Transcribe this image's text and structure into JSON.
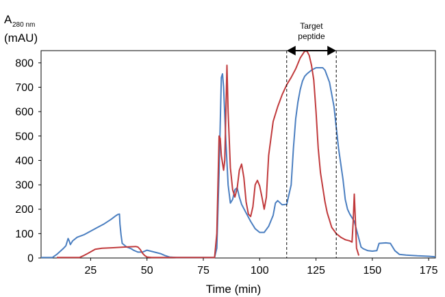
{
  "chart_data": {
    "type": "line",
    "title": "",
    "ylabel_main": "A",
    "ylabel_sub": "280 nm",
    "ylabel_unit": "(mAU)",
    "xlabel": "Time (min)",
    "xlim": [
      3,
      178
    ],
    "ylim": [
      0,
      850
    ],
    "xticks": [
      25,
      50,
      75,
      100,
      125,
      150,
      175
    ],
    "yticks": [
      0,
      100,
      200,
      300,
      400,
      500,
      600,
      700,
      800
    ],
    "grid": false,
    "legend": "none",
    "annotation": {
      "line1": "Target",
      "line2": "peptide",
      "x_start": 112,
      "x_end": 134
    },
    "series": [
      {
        "color": "#4a7ec0",
        "points": [
          [
            3,
            2
          ],
          [
            8,
            2
          ],
          [
            10,
            15
          ],
          [
            13,
            40
          ],
          [
            14,
            50
          ],
          [
            15,
            80
          ],
          [
            15.5,
            70
          ],
          [
            16,
            55
          ],
          [
            17,
            70
          ],
          [
            19,
            85
          ],
          [
            22,
            95
          ],
          [
            25,
            110
          ],
          [
            28,
            125
          ],
          [
            31,
            140
          ],
          [
            34,
            158
          ],
          [
            36,
            172
          ],
          [
            37,
            178
          ],
          [
            37.8,
            180
          ],
          [
            38,
            140
          ],
          [
            38.5,
            95
          ],
          [
            39,
            60
          ],
          [
            41,
            45
          ],
          [
            43,
            38
          ],
          [
            44,
            32
          ],
          [
            45,
            28
          ],
          [
            46,
            24
          ],
          [
            48,
            24
          ],
          [
            50,
            32
          ],
          [
            53,
            25
          ],
          [
            56,
            18
          ],
          [
            58,
            10
          ],
          [
            60,
            4
          ],
          [
            63,
            2
          ],
          [
            80,
            2
          ],
          [
            81,
            40
          ],
          [
            82,
            350
          ],
          [
            83,
            740
          ],
          [
            83.5,
            755
          ],
          [
            84,
            700
          ],
          [
            85,
            480
          ],
          [
            86,
            300
          ],
          [
            87,
            225
          ],
          [
            88,
            240
          ],
          [
            89,
            280
          ],
          [
            90,
            288
          ],
          [
            91,
            250
          ],
          [
            92,
            220
          ],
          [
            94,
            185
          ],
          [
            96,
            150
          ],
          [
            98,
            120
          ],
          [
            100,
            105
          ],
          [
            102,
            105
          ],
          [
            104,
            130
          ],
          [
            106,
            175
          ],
          [
            107,
            225
          ],
          [
            108,
            235
          ],
          [
            110,
            218
          ],
          [
            112,
            220
          ],
          [
            114,
            300
          ],
          [
            115,
            450
          ],
          [
            116,
            570
          ],
          [
            117,
            640
          ],
          [
            118,
            690
          ],
          [
            119,
            725
          ],
          [
            120,
            745
          ],
          [
            121,
            755
          ],
          [
            123,
            770
          ],
          [
            125,
            780
          ],
          [
            127,
            780
          ],
          [
            128,
            780
          ],
          [
            129,
            770
          ],
          [
            131,
            720
          ],
          [
            133,
            620
          ],
          [
            135,
            450
          ],
          [
            137,
            320
          ],
          [
            138,
            240
          ],
          [
            139,
            200
          ],
          [
            140,
            180
          ],
          [
            142,
            150
          ],
          [
            144,
            80
          ],
          [
            145,
            45
          ],
          [
            146,
            38
          ],
          [
            148,
            30
          ],
          [
            150,
            28
          ],
          [
            152,
            30
          ],
          [
            153,
            60
          ],
          [
            156,
            62
          ],
          [
            158,
            60
          ],
          [
            160,
            30
          ],
          [
            162,
            15
          ],
          [
            165,
            12
          ],
          [
            170,
            9
          ],
          [
            175,
            7
          ],
          [
            178,
            5
          ]
        ]
      },
      {
        "color": "#c0393b",
        "points": [
          [
            10,
            2
          ],
          [
            20,
            2
          ],
          [
            22,
            10
          ],
          [
            24,
            20
          ],
          [
            27,
            36
          ],
          [
            30,
            40
          ],
          [
            35,
            42
          ],
          [
            40,
            45
          ],
          [
            45,
            47
          ],
          [
            46,
            45
          ],
          [
            47,
            35
          ],
          [
            48,
            20
          ],
          [
            49,
            10
          ],
          [
            50,
            4
          ],
          [
            52,
            2
          ],
          [
            80,
            2
          ],
          [
            81,
            100
          ],
          [
            82,
            500
          ],
          [
            82.5,
            490
          ],
          [
            83,
            420
          ],
          [
            84,
            360
          ],
          [
            84.5,
            400
          ],
          [
            85.5,
            790
          ],
          [
            86,
            600
          ],
          [
            87,
            370
          ],
          [
            88,
            280
          ],
          [
            89,
            250
          ],
          [
            90,
            285
          ],
          [
            91,
            360
          ],
          [
            92,
            385
          ],
          [
            93,
            330
          ],
          [
            94,
            230
          ],
          [
            95,
            180
          ],
          [
            96,
            170
          ],
          [
            97,
            210
          ],
          [
            98,
            300
          ],
          [
            99,
            318
          ],
          [
            100,
            295
          ],
          [
            101,
            250
          ],
          [
            102,
            200
          ],
          [
            103,
            250
          ],
          [
            104,
            420
          ],
          [
            106,
            560
          ],
          [
            108,
            620
          ],
          [
            110,
            670
          ],
          [
            112,
            710
          ],
          [
            114,
            740
          ],
          [
            116,
            775
          ],
          [
            118,
            820
          ],
          [
            120,
            848
          ],
          [
            121,
            848
          ],
          [
            122,
            830
          ],
          [
            123,
            790
          ],
          [
            124,
            730
          ],
          [
            125,
            600
          ],
          [
            126,
            450
          ],
          [
            127,
            350
          ],
          [
            128,
            290
          ],
          [
            129,
            230
          ],
          [
            130,
            185
          ],
          [
            131,
            155
          ],
          [
            132,
            125
          ],
          [
            134,
            100
          ],
          [
            136,
            85
          ],
          [
            138,
            75
          ],
          [
            140,
            70
          ],
          [
            141,
            65
          ],
          [
            141.5,
            150
          ],
          [
            142,
            262
          ],
          [
            142.5,
            150
          ],
          [
            143,
            40
          ],
          [
            144,
            10
          ]
        ]
      }
    ]
  }
}
